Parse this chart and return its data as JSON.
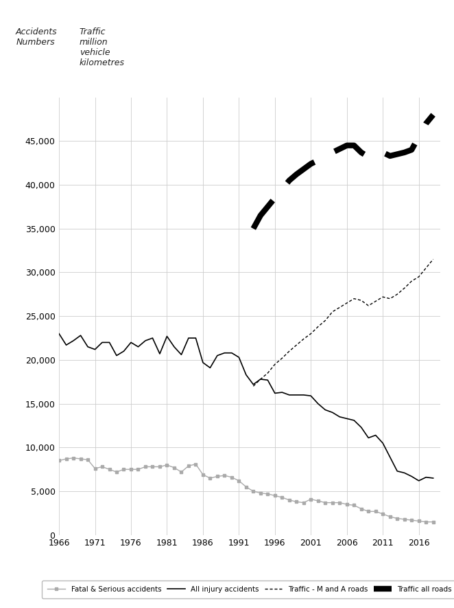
{
  "years_accidents": [
    1966,
    1967,
    1968,
    1969,
    1970,
    1971,
    1972,
    1973,
    1974,
    1975,
    1976,
    1977,
    1978,
    1979,
    1980,
    1981,
    1982,
    1983,
    1984,
    1985,
    1986,
    1987,
    1988,
    1989,
    1990,
    1991,
    1992,
    1993,
    1994,
    1995,
    1996,
    1997,
    1998,
    1999,
    2000,
    2001,
    2002,
    2003,
    2004,
    2005,
    2006,
    2007,
    2008,
    2009,
    2010,
    2011,
    2012,
    2013,
    2014,
    2015,
    2016,
    2017,
    2018
  ],
  "all_injury": [
    23000,
    21700,
    22200,
    22800,
    21500,
    21200,
    22000,
    22000,
    20500,
    21000,
    22000,
    21500,
    22200,
    22500,
    20700,
    22700,
    21500,
    20600,
    22500,
    22500,
    19700,
    19100,
    20500,
    20800,
    20800,
    20300,
    18300,
    17200,
    17800,
    17700,
    16200,
    16300,
    16000,
    16000,
    16000,
    15900,
    15000,
    14300,
    14000,
    13500,
    13300,
    13100,
    12300,
    11100,
    11400,
    10500,
    8900,
    7300,
    7100,
    6700,
    6200,
    6600,
    6500
  ],
  "fatal_serious": [
    8500,
    8700,
    8800,
    8700,
    8600,
    7600,
    7800,
    7500,
    7200,
    7500,
    7500,
    7500,
    7800,
    7800,
    7800,
    8000,
    7700,
    7200,
    7900,
    8100,
    6900,
    6500,
    6700,
    6800,
    6600,
    6200,
    5500,
    5000,
    4800,
    4700,
    4500,
    4300,
    4000,
    3800,
    3700,
    4100,
    3900,
    3700,
    3700,
    3700,
    3500,
    3400,
    3000,
    2700,
    2700,
    2400,
    2100,
    1900,
    1800,
    1700,
    1600,
    1500,
    1500
  ],
  "years_traffic_ma": [
    1993,
    1994,
    1995,
    1996,
    1997,
    1998,
    1999,
    2000,
    2001,
    2002,
    2003,
    2004,
    2005,
    2006,
    2007,
    2008,
    2009,
    2010,
    2011,
    2012,
    2013,
    2014,
    2015,
    2016,
    2017,
    2018
  ],
  "traffic_ma": [
    17000,
    17800,
    18500,
    19500,
    20200,
    21000,
    21700,
    22400,
    23000,
    23800,
    24500,
    25500,
    26000,
    26500,
    27000,
    26800,
    26200,
    26700,
    27200,
    27000,
    27500,
    28200,
    29000,
    29500,
    30500,
    31500
  ],
  "years_traffic_all": [
    1993,
    1994,
    1995,
    1996,
    1997,
    1998,
    1999,
    2000,
    2001,
    2002,
    2003,
    2004,
    2005,
    2006,
    2007,
    2008,
    2009,
    2010,
    2011,
    2012,
    2013,
    2014,
    2015,
    2016,
    2017,
    2018
  ],
  "traffic_all": [
    35000,
    36500,
    37500,
    38500,
    39500,
    40500,
    41200,
    41800,
    42400,
    42800,
    43200,
    43700,
    44100,
    44500,
    44500,
    43700,
    43200,
    43500,
    43700,
    43300,
    43500,
    43700,
    44000,
    45500,
    47000,
    48000
  ],
  "ylim": [
    0,
    50000
  ],
  "yticks": [
    0,
    5000,
    10000,
    15000,
    20000,
    25000,
    30000,
    35000,
    40000,
    45000
  ],
  "xticks": [
    1966,
    1971,
    1976,
    1981,
    1986,
    1991,
    1996,
    2001,
    2006,
    2011,
    2016
  ],
  "xlim": [
    1966,
    2019
  ],
  "color_fatal": "#aaaaaa",
  "color_injury": "#000000",
  "color_traffic_ma": "#000000",
  "color_traffic_all": "#000000",
  "bg_color": "#ffffff",
  "grid_color": "#cccccc",
  "legend_labels": [
    "Fatal & Serious accidents",
    "All injury accidents",
    "Traffic - M and A roads",
    "Traffic all roads"
  ]
}
